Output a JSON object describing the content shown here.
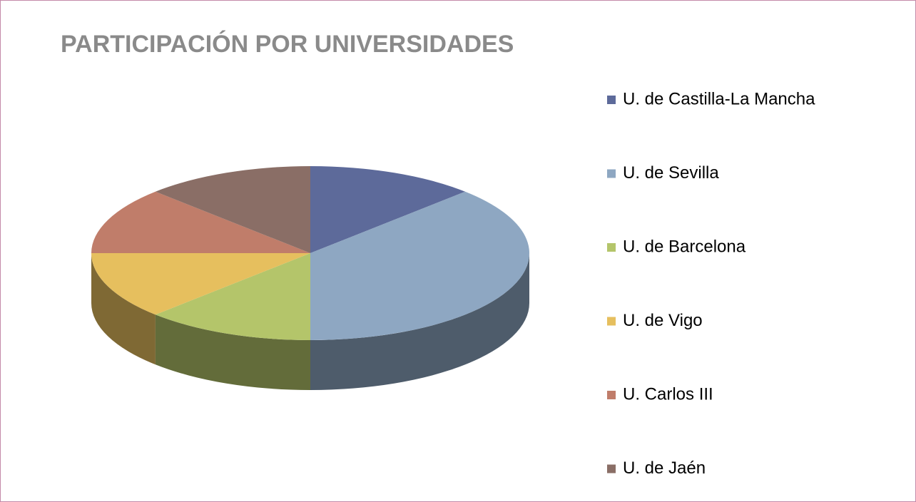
{
  "chart_data": {
    "type": "pie3d",
    "title": "PARTICIPACIÓN POR UNIVERSIDADES",
    "categories": [
      "U. de Castilla-La Mancha",
      "U. de Sevilla",
      "U. de Barcelona",
      "U. de Vigo",
      "U. Carlos III",
      "U. de Jaén"
    ],
    "values": [
      1,
      3,
      1,
      1,
      1,
      1
    ],
    "colors": [
      "#5d6a9a",
      "#8ea7c2",
      "#b4c56a",
      "#e6bf5e",
      "#c07d6a",
      "#8a6e66"
    ],
    "legend": "right"
  }
}
